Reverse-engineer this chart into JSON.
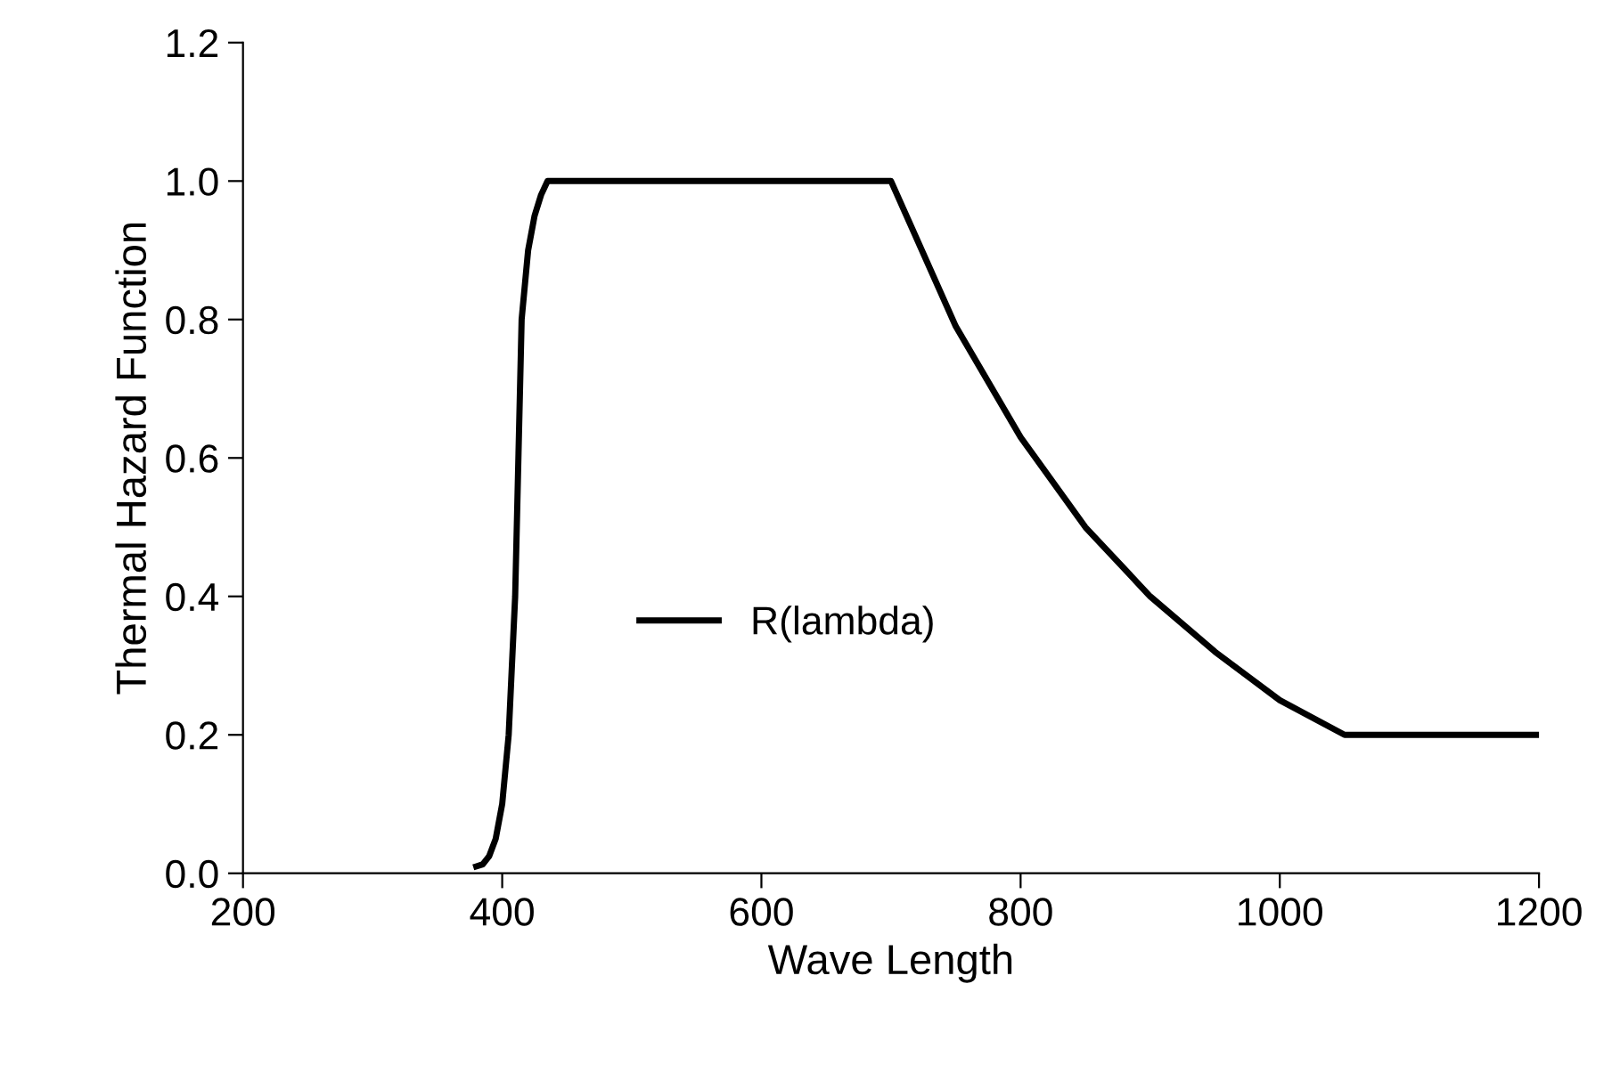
{
  "chart_data": {
    "type": "line",
    "xlabel": "Wave Length",
    "ylabel": "Thermal Hazard Function",
    "xlim": [
      200,
      1200
    ],
    "xticks": [
      200,
      400,
      600,
      800,
      1000,
      1200
    ],
    "ylim": [
      0,
      1.2
    ],
    "yticks": [
      {
        "value": 0,
        "label": "0.0"
      },
      {
        "value": 0.2,
        "label": "0.2"
      },
      {
        "value": 0.4,
        "label": "0.4"
      },
      {
        "value": 0.6,
        "label": "0.6"
      },
      {
        "value": 0.8,
        "label": "0.8"
      },
      {
        "value": 1.0,
        "label": "1.0"
      },
      {
        "value": 1.2,
        "label": "1.2"
      }
    ],
    "grid": false,
    "legend": "center",
    "marker": "none",
    "line_style": "solid",
    "series": [
      {
        "name": "R(lambda)",
        "color": "#000000",
        "x": [
          380,
          385,
          390,
          395,
          400,
          405,
          410,
          415,
          420,
          425,
          430,
          435,
          500,
          600,
          700,
          750,
          800,
          850,
          900,
          950,
          1000,
          1050,
          1200
        ],
        "values": [
          0.01,
          0.013,
          0.025,
          0.05,
          0.1,
          0.2,
          0.4,
          0.8,
          0.9,
          0.95,
          0.98,
          1.0,
          1.0,
          1.0,
          1.0,
          0.79,
          0.63,
          0.5,
          0.4,
          0.32,
          0.25,
          0.2,
          0.2
        ]
      }
    ]
  }
}
